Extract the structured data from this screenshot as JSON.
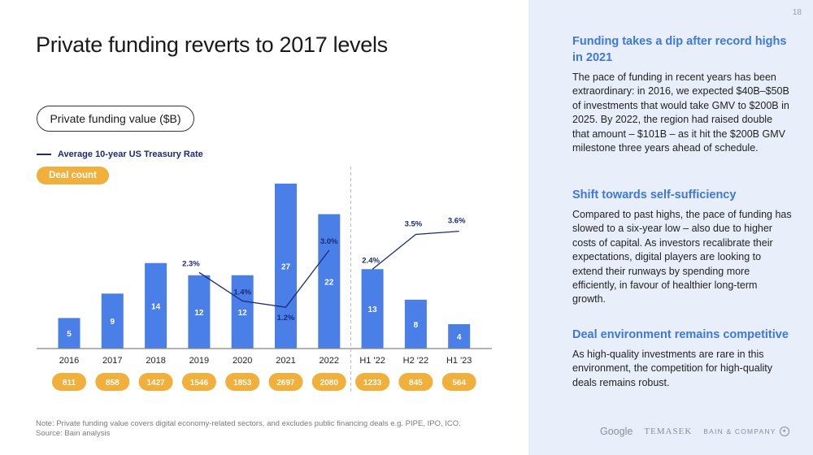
{
  "page": {
    "title": "Private funding reverts to 2017 levels",
    "page_number": "18",
    "note": "Note: Private funding value covers digital economy-related sectors, and excludes public financing deals e.g. PIPE, IPO, ICO.",
    "source": "Source: Bain analysis"
  },
  "legend": {
    "funding_label": "Private funding value ($B)",
    "treasury_label": "Average 10-year US Treasury Rate",
    "deal_label": "Deal count"
  },
  "colors": {
    "bar": "#4a7fe8",
    "line": "#1b2a7a",
    "deal": "#f0b03b",
    "heading": "#3f77dc",
    "panel": "#e8effb"
  },
  "chart_data": {
    "type": "bar",
    "title": "Private funding reverts to 2017 levels",
    "xlabel": "",
    "ylabel": "Private funding value ($B)",
    "categories": [
      "2016",
      "2017",
      "2018",
      "2019",
      "2020",
      "2021",
      "2022",
      "H1 '22",
      "H2 '22",
      "H1 '23"
    ],
    "ylim": [
      0,
      28
    ],
    "grid": false,
    "legend_position": "top-left",
    "divider_after_category": "2022",
    "series": [
      {
        "name": "Private funding value ($B)",
        "type": "bar",
        "values": [
          5,
          9,
          14,
          12,
          12,
          27,
          22,
          13,
          8,
          4
        ]
      },
      {
        "name": "Average 10-year US Treasury Rate",
        "type": "line",
        "unit": "%",
        "segments": [
          {
            "categories": [
              "2019",
              "2020",
              "2021",
              "2022"
            ],
            "values": [
              2.3,
              1.4,
              1.2,
              3.0
            ]
          },
          {
            "categories": [
              "H1 '22",
              "H2 '22",
              "H1 '23"
            ],
            "values": [
              2.4,
              3.5,
              3.6
            ]
          }
        ],
        "labels": [
          "2.3%",
          "1.4%",
          "1.2%",
          "3.0%",
          "2.4%",
          "3.5%",
          "3.6%"
        ]
      },
      {
        "name": "Deal count",
        "type": "badge",
        "values": [
          811,
          858,
          1427,
          1546,
          1853,
          2697,
          2080,
          1233,
          845,
          564
        ]
      }
    ]
  },
  "sidebar": {
    "sections": [
      {
        "heading": "Funding takes a dip after record highs in 2021",
        "body": "The pace of funding in recent years has been extraordinary: in 2016, we expected $40B–$50B of investments that would take GMV to $200B in 2025. By 2022, the region had raised double that amount – $101B – as it hit the $200B GMV milestone three years ahead of schedule."
      },
      {
        "heading": "Shift towards self-sufficiency",
        "body": "Compared to past highs, the pace of funding has slowed to a six-year low – also due to higher costs of capital. As investors recalibrate their expectations, digital players are looking to extend their runways by spending more efficiently, in favour of healthier long-term growth."
      },
      {
        "heading": "Deal environment remains competitive",
        "body": "As high-quality investments are rare in this environment, the competition for high-quality deals remains robust."
      }
    ],
    "logos": [
      "Google",
      "TEMASEK",
      "BAIN & COMPANY"
    ]
  }
}
